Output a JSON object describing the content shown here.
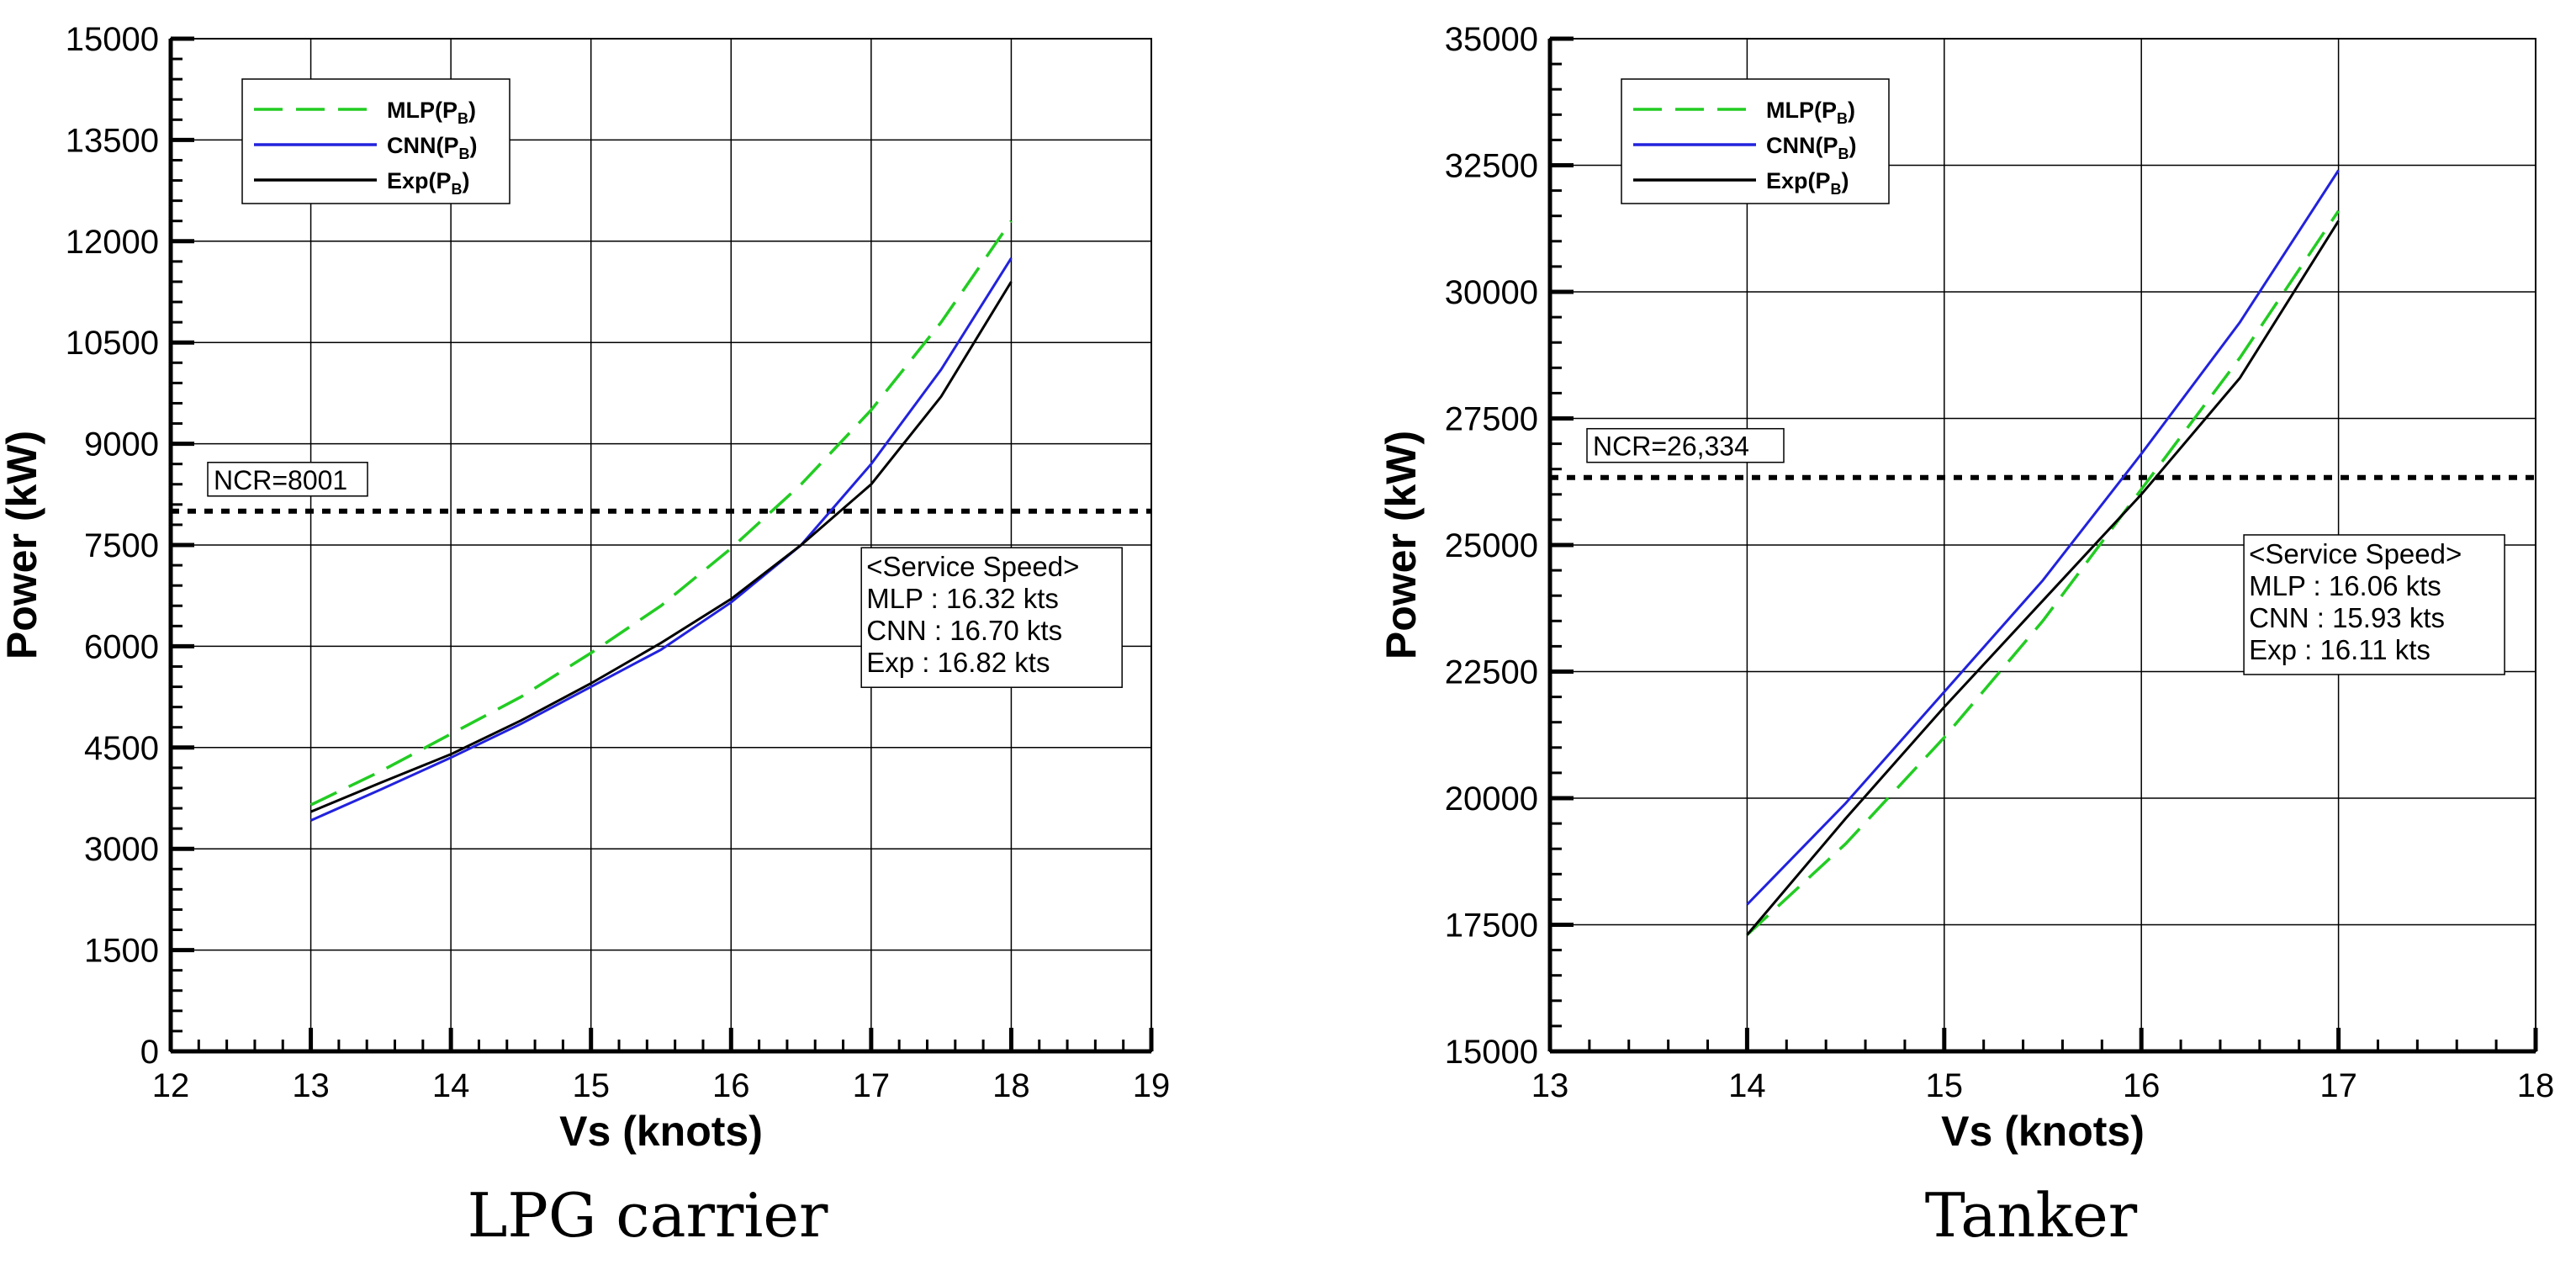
{
  "chart_data": [
    {
      "type": "line",
      "caption": "LPG carrier",
      "xlabel": "Vs (knots)",
      "ylabel": "Power (kW)",
      "xlim": [
        12,
        19
      ],
      "ylim": [
        0,
        15000
      ],
      "x_ticks": [
        12,
        13,
        14,
        15,
        16,
        17,
        18,
        19
      ],
      "y_ticks": [
        0,
        1500,
        3000,
        4500,
        6000,
        7500,
        9000,
        10500,
        12000,
        13500,
        15000
      ],
      "grid": true,
      "legend_position": "top-left",
      "series": [
        {
          "name": "MLP",
          "subscript": "B",
          "color": "#22cc22",
          "dash": "dashed",
          "x": [
            13,
            13.5,
            14,
            14.5,
            15,
            15.5,
            16,
            16.5,
            17,
            17.5,
            18
          ],
          "y": [
            3650,
            4150,
            4700,
            5250,
            5900,
            6600,
            7450,
            8400,
            9500,
            10800,
            12300
          ]
        },
        {
          "name": "CNN",
          "subscript": "B",
          "color": "#2222dd",
          "dash": "solid",
          "x": [
            13,
            13.5,
            14,
            14.5,
            15,
            15.5,
            16,
            16.5,
            17,
            17.5,
            18
          ],
          "y": [
            3420,
            3880,
            4350,
            4850,
            5400,
            5950,
            6650,
            7500,
            8700,
            10100,
            11750
          ]
        },
        {
          "name": "Exp",
          "subscript": "B",
          "color": "#000000",
          "dash": "solid",
          "x": [
            13,
            13.5,
            14,
            14.5,
            15,
            15.5,
            16,
            16.5,
            17,
            17.5,
            18
          ],
          "y": [
            3550,
            3980,
            4400,
            4900,
            5450,
            6050,
            6700,
            7500,
            8400,
            9700,
            11400
          ]
        }
      ],
      "ncr": {
        "value": 8001,
        "label": "NCR=8001"
      },
      "annotation": {
        "lines": [
          "<Service Speed>",
          "MLP : 16.32 kts",
          "CNN : 16.70 kts",
          "Exp : 16.82 kts"
        ],
        "anchor": [
          16.93,
          7460
        ]
      }
    },
    {
      "type": "line",
      "caption": "Tanker",
      "xlabel": "Vs (knots)",
      "ylabel": "Power (kW)",
      "xlim": [
        13,
        18
      ],
      "ylim": [
        15000,
        35000
      ],
      "x_ticks": [
        13,
        14,
        15,
        16,
        17,
        18
      ],
      "y_ticks": [
        15000,
        17500,
        20000,
        22500,
        25000,
        27500,
        30000,
        32500,
        35000
      ],
      "grid": true,
      "legend_position": "top-left",
      "series": [
        {
          "name": "MLP",
          "subscript": "B",
          "color": "#22cc22",
          "dash": "dashed",
          "x": [
            14,
            14.5,
            15,
            15.5,
            16,
            16.5,
            17
          ],
          "y": [
            17300,
            19100,
            21200,
            23500,
            26100,
            28700,
            31600
          ]
        },
        {
          "name": "CNN",
          "subscript": "B",
          "color": "#2222dd",
          "dash": "solid",
          "x": [
            14,
            14.5,
            15,
            15.5,
            16,
            16.5,
            17
          ],
          "y": [
            17900,
            19900,
            22100,
            24300,
            26800,
            29400,
            32400
          ]
        },
        {
          "name": "Exp",
          "subscript": "B",
          "color": "#000000",
          "dash": "solid",
          "x": [
            14,
            14.5,
            15,
            15.5,
            16,
            16.5,
            17
          ],
          "y": [
            17300,
            19600,
            21800,
            23900,
            26000,
            28300,
            31400
          ]
        }
      ],
      "ncr": {
        "value": 26334,
        "label": "NCR=26,334"
      },
      "annotation": {
        "lines": [
          "<Service Speed>",
          "MLP : 16.06 kts",
          "CNN : 15.93 kts",
          "Exp : 16.11 kts"
        ],
        "anchor": [
          16.52,
          25200
        ]
      }
    }
  ]
}
